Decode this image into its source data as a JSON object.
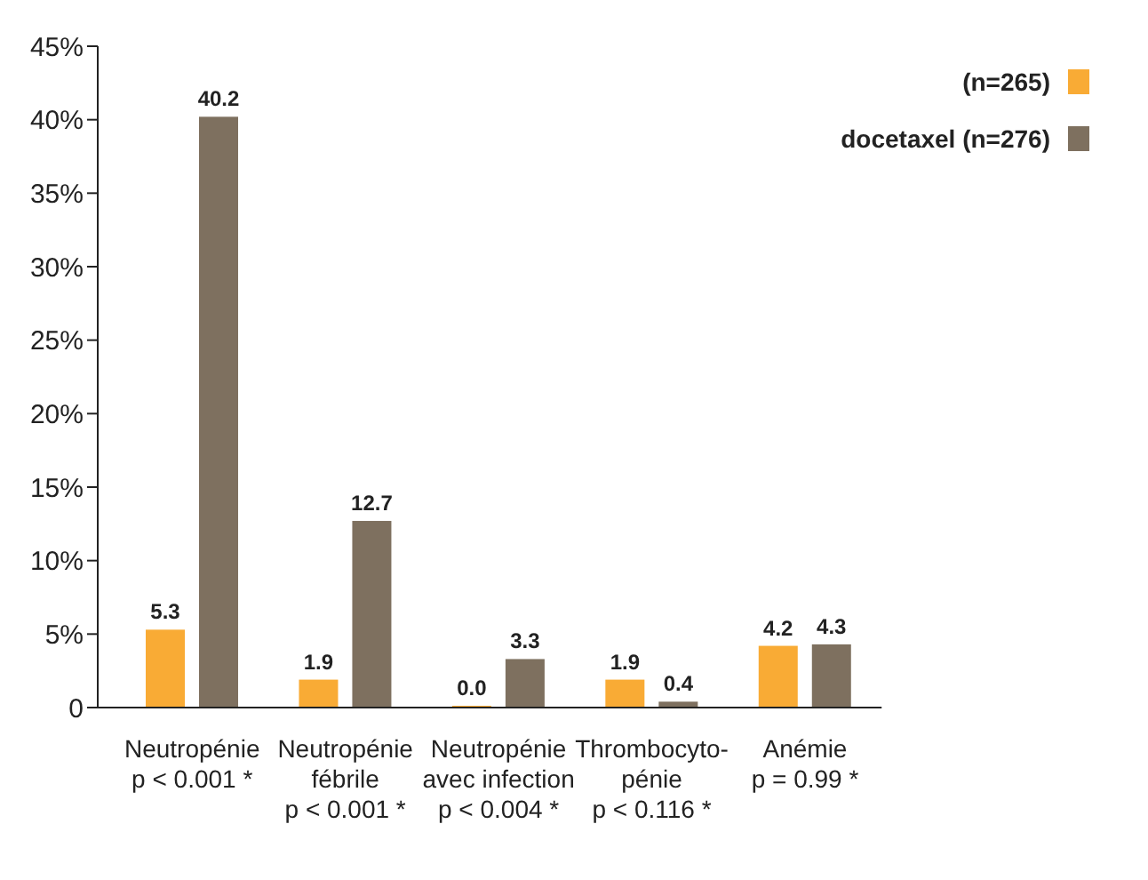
{
  "chart_data": {
    "type": "bar",
    "categories": [
      "Neutropénie\np < 0.001 *",
      "Neutropénie\nfébrile\np < 0.001 *",
      "Neutropénie\navec infection\np < 0.004 *",
      "Thrombocyto-\npénie\np < 0.116 *",
      "Anémie\np = 0.99 *"
    ],
    "series": [
      {
        "name": "(n=265)",
        "color": "#f9ab35",
        "values": [
          5.3,
          1.9,
          0.0,
          1.9,
          4.2
        ],
        "value_labels": [
          "5.3",
          "1.9",
          "0.0",
          "1.9",
          "4.2"
        ]
      },
      {
        "name": "docetaxel (n=276)",
        "color": "#7e705f",
        "values": [
          40.2,
          12.7,
          3.3,
          0.4,
          4.3
        ],
        "value_labels": [
          "40.2",
          "12.7",
          "3.3",
          "0.4",
          "4.3"
        ]
      }
    ],
    "ylim": [
      0,
      45
    ],
    "yticks": [
      0,
      {
        "value": 5,
        "label": "5%"
      },
      {
        "value": 10,
        "label": "10%"
      },
      {
        "value": 15,
        "label": "15%"
      },
      {
        "value": 20,
        "label": "20%"
      },
      {
        "value": 25,
        "label": "25%"
      },
      {
        "value": 30,
        "label": "30%"
      },
      {
        "value": 35,
        "label": "35%"
      },
      {
        "value": 40,
        "label": "40%"
      },
      {
        "value": 45,
        "label": "45%"
      }
    ],
    "legend": "top right",
    "grid": false
  }
}
